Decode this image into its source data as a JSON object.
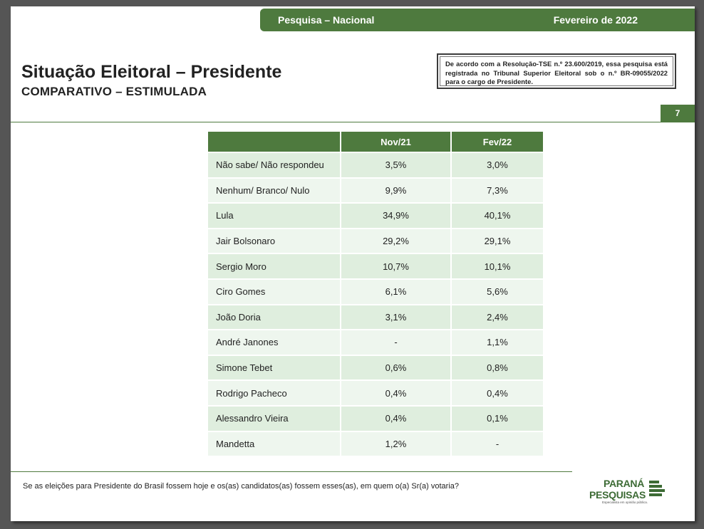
{
  "header": {
    "left_text": "Pesquisa – Nacional",
    "right_text": "Fevereiro de 2022"
  },
  "title": "Situação Eleitoral – Presidente",
  "subtitle": "COMPARATIVO – ESTIMULADA",
  "tse_notice": "De acordo com a Resolução-TSE n.º 23.600/2019, essa pesquisa está registrada no Tribunal Superior Eleitoral sob o n.º BR-09055/2022 para o cargo de Presidente.",
  "page_number": "7",
  "table": {
    "columns": [
      "",
      "Nov/21",
      "Fev/22"
    ],
    "rows": [
      {
        "label": "Não sabe/ Não respondeu",
        "nov21": "3,5%",
        "fev22": "3,0%"
      },
      {
        "label": "Nenhum/ Branco/ Nulo",
        "nov21": "9,9%",
        "fev22": "7,3%"
      },
      {
        "label": "Lula",
        "nov21": "34,9%",
        "fev22": "40,1%"
      },
      {
        "label": "Jair Bolsonaro",
        "nov21": "29,2%",
        "fev22": "29,1%"
      },
      {
        "label": "Sergio Moro",
        "nov21": "10,7%",
        "fev22": "10,1%"
      },
      {
        "label": "Ciro Gomes",
        "nov21": "6,1%",
        "fev22": "5,6%"
      },
      {
        "label": "João Doria",
        "nov21": "3,1%",
        "fev22": "2,4%"
      },
      {
        "label": "André Janones",
        "nov21": "-",
        "fev22": "1,1%"
      },
      {
        "label": "Simone Tebet",
        "nov21": "0,6%",
        "fev22": "0,8%"
      },
      {
        "label": "Rodrigo Pacheco",
        "nov21": "0,4%",
        "fev22": "0,4%"
      },
      {
        "label": "Alessandro Vieira",
        "nov21": "0,4%",
        "fev22": "0,1%"
      },
      {
        "label": "Mandetta",
        "nov21": "1,2%",
        "fev22": "-"
      }
    ]
  },
  "question": "Se as eleições para Presidente do Brasil fossem hoje e os(as) candidatos(as) fossem esses(as), em quem o(a) Sr(a) votaria?",
  "logo": {
    "line1": "PARANÁ",
    "line2": "PESQUISAS",
    "tagline": "Especialista em opinião pública.",
    "color": "#3d6b35"
  },
  "colors": {
    "brand_green": "#4e7a3e",
    "row_odd": "#dfeede",
    "row_even": "#eef6ee"
  }
}
